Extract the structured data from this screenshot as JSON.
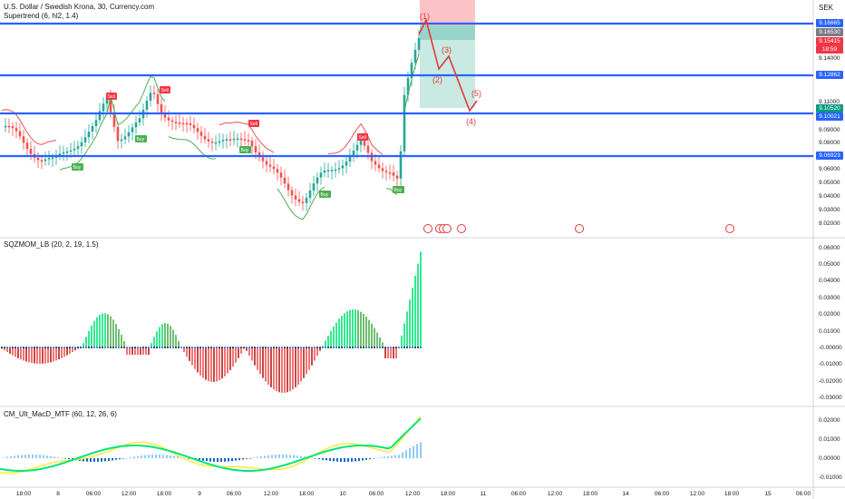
{
  "header": {
    "title": "U.S. Dollar / Swedish Krona, 30, Currency.com",
    "indicator": "Supertrend (6, hl2, 1.4)",
    "currency": "SEK"
  },
  "panes": {
    "sqz_label": "SQZMOM_LB (20, 2, 19, 1.5)",
    "macd_label": "CM_Ult_MacD_MTF (60, 12, 26, 6)"
  },
  "price_axis": {
    "ticks": [
      "9.16000",
      "9.14000",
      "9.12000",
      "9.11000",
      "9.09000",
      "9.08000",
      "9.06000",
      "9.05000",
      "9.04000",
      "9.03000",
      "9.02000"
    ],
    "tags": [
      {
        "label": "9.16665",
        "color": "#2962ff"
      },
      {
        "label": "9.16530",
        "color": "#787b86"
      },
      {
        "label": "9.15415",
        "color": "#f23645"
      },
      {
        "label": "18:59",
        "color": "#f23645"
      },
      {
        "label": "9.12862",
        "color": "#2962ff"
      },
      {
        "label": "9.10520",
        "color": "#089981"
      },
      {
        "label": "9.10021",
        "color": "#2962ff"
      },
      {
        "label": "9.06923",
        "color": "#2962ff"
      }
    ]
  },
  "sqz_axis": [
    "0.06000",
    "0.05000",
    "0.04000",
    "0.03000",
    "0.02000",
    "0.01000",
    "-0.00000",
    "-0.01000",
    "-0.02000",
    "-0.03000"
  ],
  "macd_axis": [
    "0.02000",
    "0.01000",
    "0.00000",
    "-0.01000"
  ],
  "time_axis": [
    "18:00",
    "8",
    "06:00",
    "12:00",
    "18:00",
    "9",
    "06:00",
    "12:00",
    "18:00",
    "10",
    "06:00",
    "12:00",
    "18:00",
    "11",
    "06:00",
    "12:00",
    "18:00",
    "14",
    "06:00",
    "12:00",
    "18:00",
    "15",
    "06:00"
  ],
  "signals": [
    "Buy",
    "Sell",
    "Buy",
    "Sell",
    "Buy",
    "Sell",
    "Buy",
    "Sell",
    "Buy"
  ],
  "waves": [
    "(1)",
    "(2)",
    "(3)",
    "(4)",
    "(5)"
  ],
  "colors": {
    "level_line": "#2962ff",
    "up": "#26a69a",
    "down": "#ef5350",
    "sell": "#f23645",
    "buy": "#4caf50",
    "wave": "#e53935"
  }
}
